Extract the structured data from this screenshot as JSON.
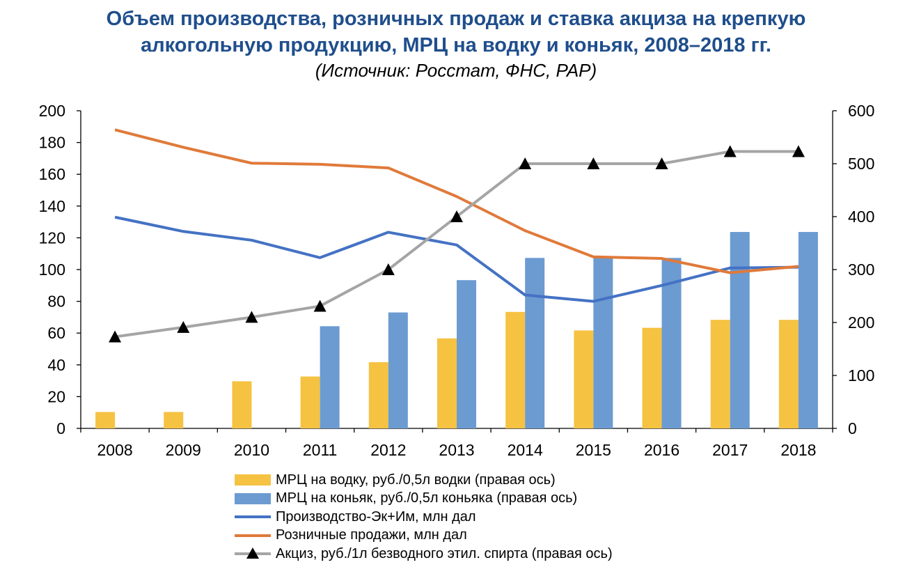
{
  "chart_data": {
    "type": "bar+line",
    "title_line1": "Объем производства, розничных продаж и ставка акциза на крепкую",
    "title_line2": "алкогольную продукцию, МРЦ на водку и коньяк, 2008–2018 гг.",
    "subtitle": "(Источник: Росстат, ФНС, РАР)",
    "categories": [
      "2008",
      "2009",
      "2010",
      "2011",
      "2012",
      "2013",
      "2014",
      "2015",
      "2016",
      "2017",
      "2018"
    ],
    "left_axis": {
      "ylim": [
        0,
        200
      ],
      "ticks": [
        "0",
        "20",
        "40",
        "60",
        "80",
        "100",
        "120",
        "140",
        "160",
        "180",
        "200"
      ]
    },
    "right_axis": {
      "ylim": [
        0,
        600
      ],
      "ticks": [
        "0",
        "100",
        "200",
        "300",
        "400",
        "500",
        "600"
      ]
    },
    "series": [
      {
        "name": "МРЦ на водку, руб./0,5л водки (правая ось)",
        "kind": "bar",
        "axis": "right",
        "color": "#f5c242",
        "values": [
          31,
          31,
          89,
          98,
          125,
          170,
          220,
          185,
          190,
          205,
          205
        ]
      },
      {
        "name": "МРЦ на коньяк, руб./0,5л коньяка (правая ось)",
        "kind": "bar",
        "axis": "right",
        "color": "#6b9bd1",
        "values": [
          null,
          null,
          null,
          193,
          219,
          280,
          322,
          322,
          322,
          371,
          371
        ]
      },
      {
        "name": "Производство-Эк+Им, млн дал",
        "kind": "line",
        "axis": "left",
        "color": "#4472c4",
        "values": [
          133,
          124,
          118.5,
          107.5,
          123.5,
          115.5,
          84,
          80,
          90,
          101,
          101.5
        ]
      },
      {
        "name": "Розничные продажи, млн дал",
        "kind": "line",
        "axis": "left",
        "color": "#e07a3a",
        "values": [
          188,
          177,
          167,
          166.3,
          164,
          146,
          124.5,
          108,
          107,
          98,
          102
        ]
      },
      {
        "name": "Акциз, руб./1л безводного этил. спирта (правая ось)",
        "kind": "line",
        "axis": "right",
        "color": "#a5a5a5",
        "marker": "triangle",
        "values": [
          173,
          191,
          210,
          231,
          300,
          400,
          500,
          500,
          500,
          523,
          523
        ]
      }
    ],
    "grid": false,
    "legend_position": "bottom"
  }
}
